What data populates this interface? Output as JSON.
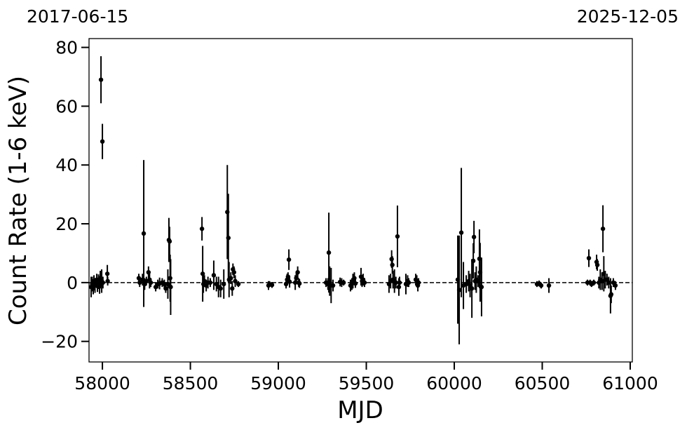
{
  "chart_data": {
    "type": "scatter",
    "title": "",
    "xlabel": "MJD",
    "ylabel": "Count Rate (1-6 keV)",
    "xlim": [
      57924,
      61012
    ],
    "ylim": [
      -27,
      83
    ],
    "xticks": [
      58000,
      58500,
      59000,
      59500,
      60000,
      60500,
      61000
    ],
    "yticks": [
      -20,
      0,
      20,
      40,
      60,
      80
    ],
    "ytick_labels": [
      "−20",
      "0",
      "20",
      "40",
      "60",
      "80"
    ],
    "top_labels": {
      "left": "2017-06-15",
      "right": "2025-12-05"
    },
    "reference_line": {
      "y": 0,
      "style": "dashed"
    },
    "grid": false,
    "marker_color": "#000000",
    "points": [
      [
        57936,
        -1.5,
        3.5
      ],
      [
        57942,
        -0.5,
        2.5
      ],
      [
        57948,
        -2,
        2
      ],
      [
        57952,
        0.5,
        2
      ],
      [
        57958,
        -1,
        2.5
      ],
      [
        57962,
        0,
        1.5
      ],
      [
        57968,
        1,
        2
      ],
      [
        57972,
        -1.2,
        2
      ],
      [
        57978,
        0.3,
        2.5
      ],
      [
        57984,
        -0.8,
        3
      ],
      [
        57988,
        1,
        3
      ],
      [
        57992,
        69,
        8
      ],
      [
        58000,
        48,
        6
      ],
      [
        57996,
        0.5,
        4
      ],
      [
        58003,
        0,
        2
      ],
      [
        58028,
        3,
        3
      ],
      [
        58030,
        0.5,
        1.5
      ],
      [
        58207,
        1.5,
        1.5
      ],
      [
        58212,
        0,
        1.5
      ],
      [
        58228,
        1,
        2
      ],
      [
        58235,
        16.7,
        25
      ],
      [
        58240,
        -0.5,
        2
      ],
      [
        58250,
        0.5,
        1.5
      ],
      [
        58262,
        3.5,
        2
      ],
      [
        58268,
        1,
        3
      ],
      [
        58275,
        0,
        1.5
      ],
      [
        58303,
        -1.5,
        1.5
      ],
      [
        58315,
        -0.5,
        1.5
      ],
      [
        58325,
        -0.3,
        2
      ],
      [
        58340,
        0,
        1.5
      ],
      [
        58352,
        -0.5,
        1.5
      ],
      [
        58360,
        -2,
        1.5
      ],
      [
        58372,
        -0.5,
        5
      ],
      [
        58378,
        14.5,
        7.5
      ],
      [
        58382,
        14,
        5
      ],
      [
        58385,
        1.5,
        8
      ],
      [
        58388,
        -1.5,
        9.5
      ],
      [
        58566,
        18.3,
        4
      ],
      [
        58570,
        3,
        9.5
      ],
      [
        58574,
        -0.5,
        3
      ],
      [
        58580,
        0.5,
        2
      ],
      [
        58590,
        -1,
        2
      ],
      [
        58600,
        0,
        2
      ],
      [
        58613,
        0,
        1.5
      ],
      [
        58633,
        2.5,
        5
      ],
      [
        58648,
        -0.5,
        2.5
      ],
      [
        58660,
        -1.5,
        3.5
      ],
      [
        58672,
        -2,
        3
      ],
      [
        58690,
        -0.5,
        5
      ],
      [
        58710,
        24,
        16
      ],
      [
        58716,
        15.2,
        15
      ],
      [
        58720,
        1,
        6
      ],
      [
        58730,
        1.5,
        2
      ],
      [
        58738,
        -2,
        2.5
      ],
      [
        58742,
        4.5,
        2
      ],
      [
        58748,
        3.5,
        2
      ],
      [
        58755,
        0.5,
        2
      ],
      [
        58773,
        -0.5,
        1
      ],
      [
        58944,
        -1,
        1.5
      ],
      [
        58950,
        -0.5,
        1
      ],
      [
        58964,
        -0.8,
        1
      ],
      [
        59044,
        -0.5,
        1.5
      ],
      [
        59050,
        1,
        2
      ],
      [
        59055,
        2,
        1.5
      ],
      [
        59060,
        7.8,
        3.5
      ],
      [
        59064,
        0.3,
        2
      ],
      [
        59096,
        0,
        2.5
      ],
      [
        59102,
        1.5,
        2
      ],
      [
        59110,
        3.5,
        2
      ],
      [
        59116,
        0,
        1.5
      ],
      [
        59120,
        -0.3,
        1.5
      ],
      [
        59271,
        0,
        1.5
      ],
      [
        59282,
        -0.5,
        2
      ],
      [
        59287,
        10.2,
        13.6
      ],
      [
        59292,
        0.5,
        5
      ],
      [
        59300,
        -1,
        6
      ],
      [
        59311,
        -1,
        2
      ],
      [
        59351,
        0.2,
        1.5
      ],
      [
        59360,
        0,
        1.5
      ],
      [
        59371,
        0,
        1
      ],
      [
        59410,
        -1,
        2
      ],
      [
        59418,
        -0.5,
        2
      ],
      [
        59424,
        0.5,
        2.5
      ],
      [
        59432,
        1.5,
        2
      ],
      [
        59438,
        -0.3,
        1.5
      ],
      [
        59470,
        2,
        3
      ],
      [
        59476,
        0.5,
        2
      ],
      [
        59482,
        1,
        2
      ],
      [
        59490,
        0,
        1.5
      ],
      [
        59629,
        -0.5,
        3
      ],
      [
        59638,
        0.5,
        2.5
      ],
      [
        59644,
        8,
        3
      ],
      [
        59648,
        6,
        3
      ],
      [
        59652,
        1,
        3
      ],
      [
        59660,
        0.5,
        4
      ],
      [
        59668,
        0,
        2
      ],
      [
        59677,
        15.7,
        10.5
      ],
      [
        59685,
        -1.5,
        3
      ],
      [
        59689,
        0,
        2
      ],
      [
        59725,
        -0.5,
        3.5
      ],
      [
        59735,
        0.5,
        2
      ],
      [
        59741,
        0,
        1.5
      ],
      [
        59781,
        1,
        2
      ],
      [
        59787,
        0.5,
        2
      ],
      [
        59793,
        -1,
        2
      ],
      [
        59797,
        0,
        1.5
      ],
      [
        60020,
        1,
        15
      ],
      [
        60028,
        -2.5,
        18.5
      ],
      [
        60040,
        17,
        22
      ],
      [
        60052,
        -1,
        8
      ],
      [
        60068,
        -0.5,
        3
      ],
      [
        60082,
        0.5,
        3.5
      ],
      [
        60090,
        -1,
        4
      ],
      [
        60100,
        -2,
        10
      ],
      [
        60108,
        7.4,
        6
      ],
      [
        60112,
        15.5,
        5.5
      ],
      [
        60118,
        0.5,
        3
      ],
      [
        60125,
        1,
        4.5
      ],
      [
        60135,
        0.5,
        2
      ],
      [
        60143,
        8.1,
        10
      ],
      [
        60147,
        3.5,
        10
      ],
      [
        60155,
        -1.5,
        10
      ],
      [
        60470,
        -0.5,
        1
      ],
      [
        60482,
        -0.3,
        1
      ],
      [
        60494,
        -1,
        1
      ],
      [
        60538,
        -1,
        2.5
      ],
      [
        60757,
        0,
        1
      ],
      [
        60765,
        8.3,
        3
      ],
      [
        60772,
        0,
        1
      ],
      [
        60780,
        -0.5,
        1
      ],
      [
        60793,
        0,
        1
      ],
      [
        60809,
        7,
        2.5
      ],
      [
        60813,
        6,
        2
      ],
      [
        60822,
        0,
        2
      ],
      [
        60830,
        1,
        3.5
      ],
      [
        60840,
        0.5,
        3
      ],
      [
        60845,
        18.3,
        8
      ],
      [
        60850,
        3,
        6
      ],
      [
        60858,
        1,
        3
      ],
      [
        60868,
        1,
        2
      ],
      [
        60878,
        0,
        2
      ],
      [
        60888,
        -4.5,
        6
      ],
      [
        60892,
        -4,
        3
      ],
      [
        60904,
        0,
        1.5
      ],
      [
        60916,
        -1,
        1.5
      ]
    ]
  }
}
